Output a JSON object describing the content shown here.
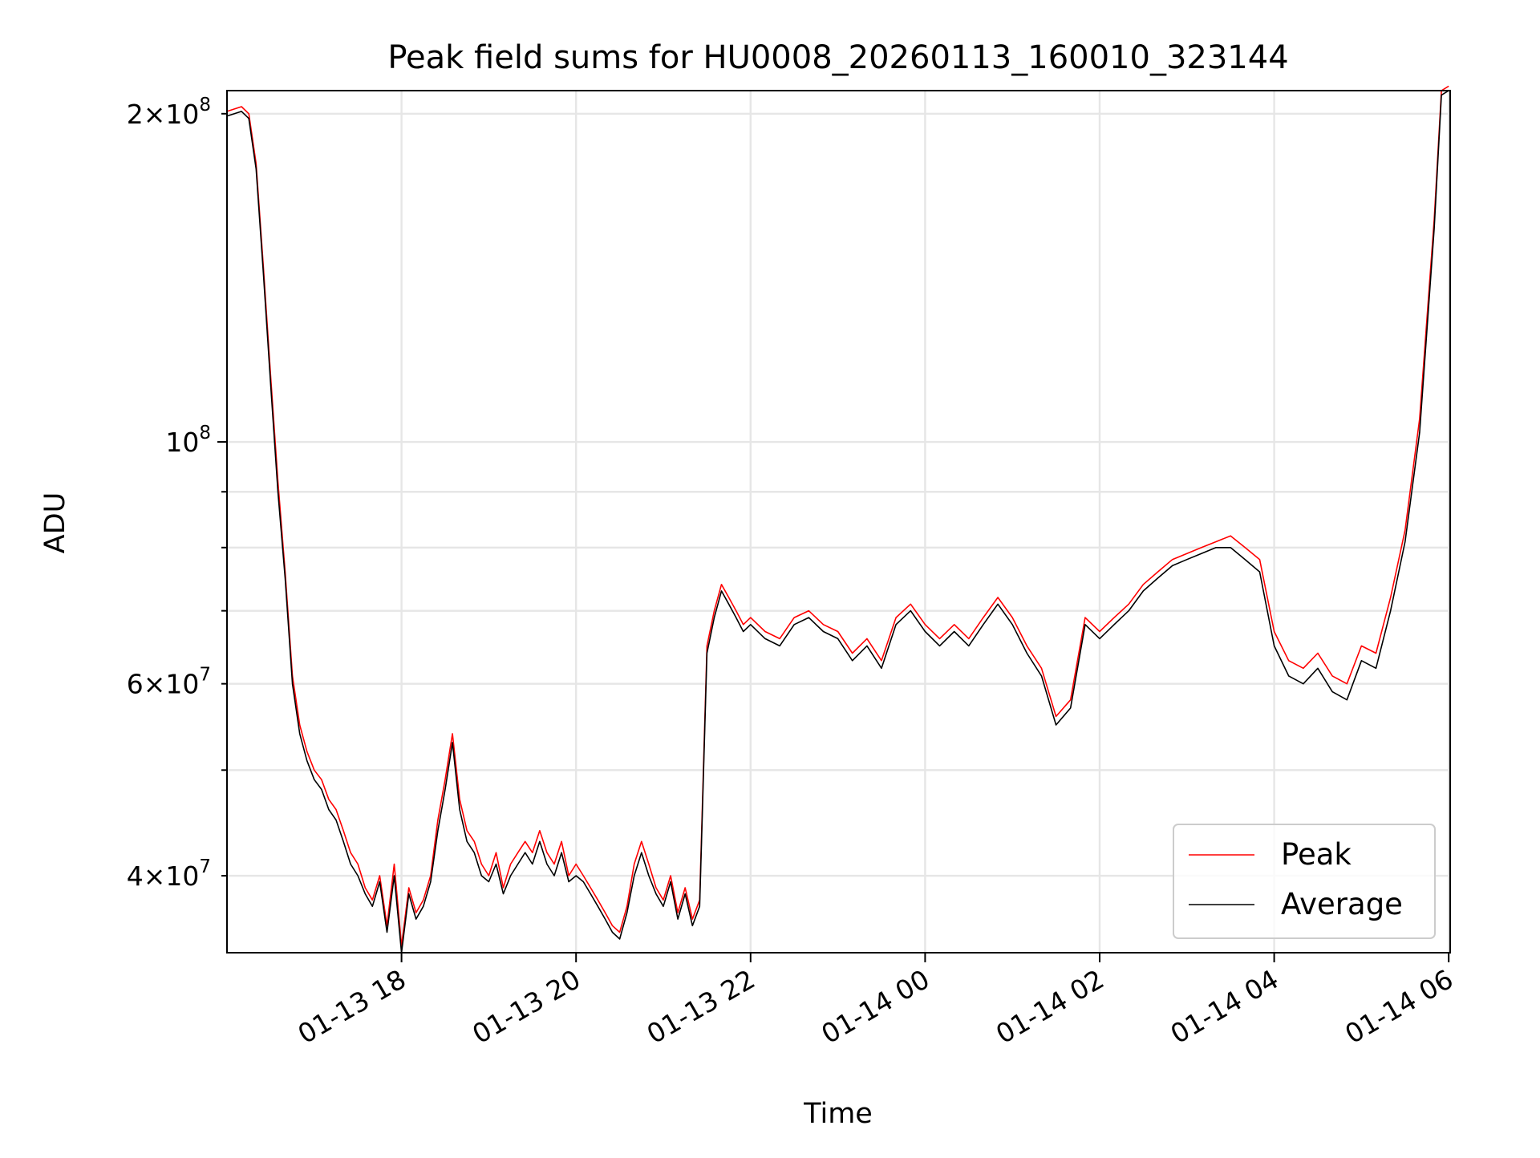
{
  "chart_data": {
    "type": "line",
    "title": "Peak field sums for HU0008_20260113_160010_323144",
    "xlabel": "Time",
    "ylabel": "ADU",
    "yscale": "log",
    "xlim": [
      "2026-01-13 16:00",
      "2026-01-14 06:01"
    ],
    "ylim": [
      34000000.0,
      210000000.0
    ],
    "grid": true,
    "legend_position": "lower-right",
    "x_tick_labels": [
      "01-13 18",
      "01-13 20",
      "01-13 22",
      "01-14 00",
      "01-14 02",
      "01-14 04",
      "01-14 06"
    ],
    "x_tick_times": [
      "2026-01-13 18:00",
      "2026-01-13 20:00",
      "2026-01-13 22:00",
      "2026-01-14 00:00",
      "2026-01-14 02:00",
      "2026-01-14 04:00",
      "2026-01-14 06:00"
    ],
    "y_major_ticks": [
      {
        "value": 100000000,
        "base": "10",
        "exp": "8"
      }
    ],
    "y_minor_ticks": [
      {
        "value": 40000000,
        "mant": "4",
        "exp": "7"
      },
      {
        "value": 60000000,
        "mant": "6",
        "exp": "7"
      },
      {
        "value": 200000000,
        "mant": "2",
        "exp": "8"
      }
    ],
    "y_unlabeled_minor_ticks": [
      30000000,
      50000000,
      70000000,
      80000000,
      90000000
    ],
    "series": [
      {
        "name": "Peak",
        "color": "#ff0000",
        "x": [
          "2026-01-13 16:00",
          "2026-01-13 16:10",
          "2026-01-13 16:15",
          "2026-01-13 16:20",
          "2026-01-13 16:25",
          "2026-01-13 16:30",
          "2026-01-13 16:35",
          "2026-01-13 16:40",
          "2026-01-13 16:45",
          "2026-01-13 16:50",
          "2026-01-13 16:55",
          "2026-01-13 17:00",
          "2026-01-13 17:05",
          "2026-01-13 17:10",
          "2026-01-13 17:15",
          "2026-01-13 17:20",
          "2026-01-13 17:25",
          "2026-01-13 17:30",
          "2026-01-13 17:35",
          "2026-01-13 17:40",
          "2026-01-13 17:45",
          "2026-01-13 17:50",
          "2026-01-13 17:55",
          "2026-01-13 18:00",
          "2026-01-13 18:05",
          "2026-01-13 18:10",
          "2026-01-13 18:15",
          "2026-01-13 18:20",
          "2026-01-13 18:25",
          "2026-01-13 18:30",
          "2026-01-13 18:35",
          "2026-01-13 18:40",
          "2026-01-13 18:45",
          "2026-01-13 18:50",
          "2026-01-13 18:55",
          "2026-01-13 19:00",
          "2026-01-13 19:05",
          "2026-01-13 19:10",
          "2026-01-13 19:15",
          "2026-01-13 19:20",
          "2026-01-13 19:25",
          "2026-01-13 19:30",
          "2026-01-13 19:35",
          "2026-01-13 19:40",
          "2026-01-13 19:45",
          "2026-01-13 19:50",
          "2026-01-13 19:55",
          "2026-01-13 20:00",
          "2026-01-13 20:05",
          "2026-01-13 20:10",
          "2026-01-13 20:15",
          "2026-01-13 20:20",
          "2026-01-13 20:25",
          "2026-01-13 20:30",
          "2026-01-13 20:35",
          "2026-01-13 20:40",
          "2026-01-13 20:45",
          "2026-01-13 20:50",
          "2026-01-13 20:55",
          "2026-01-13 21:00",
          "2026-01-13 21:05",
          "2026-01-13 21:10",
          "2026-01-13 21:15",
          "2026-01-13 21:20",
          "2026-01-13 21:25",
          "2026-01-13 21:30",
          "2026-01-13 21:35",
          "2026-01-13 21:40",
          "2026-01-13 21:45",
          "2026-01-13 21:50",
          "2026-01-13 21:55",
          "2026-01-13 22:00",
          "2026-01-13 22:10",
          "2026-01-13 22:20",
          "2026-01-13 22:30",
          "2026-01-13 22:40",
          "2026-01-13 22:50",
          "2026-01-13 23:00",
          "2026-01-13 23:10",
          "2026-01-13 23:20",
          "2026-01-13 23:30",
          "2026-01-13 23:40",
          "2026-01-13 23:50",
          "2026-01-14 00:00",
          "2026-01-14 00:10",
          "2026-01-14 00:20",
          "2026-01-14 00:30",
          "2026-01-14 00:40",
          "2026-01-14 00:50",
          "2026-01-14 01:00",
          "2026-01-14 01:10",
          "2026-01-14 01:20",
          "2026-01-14 01:30",
          "2026-01-14 01:40",
          "2026-01-14 01:50",
          "2026-01-14 02:00",
          "2026-01-14 02:10",
          "2026-01-14 02:20",
          "2026-01-14 02:30",
          "2026-01-14 02:40",
          "2026-01-14 02:50",
          "2026-01-14 03:00",
          "2026-01-14 03:10",
          "2026-01-14 03:20",
          "2026-01-14 03:30",
          "2026-01-14 03:40",
          "2026-01-14 03:50",
          "2026-01-14 04:00",
          "2026-01-14 04:10",
          "2026-01-14 04:20",
          "2026-01-14 04:30",
          "2026-01-14 04:40",
          "2026-01-14 04:50",
          "2026-01-14 05:00",
          "2026-01-14 05:10",
          "2026-01-14 05:20",
          "2026-01-14 05:30",
          "2026-01-14 05:40",
          "2026-01-14 05:50",
          "2026-01-14 05:55",
          "2026-01-14 06:00"
        ],
        "values": [
          201000000.0,
          203000000.0,
          200000000.0,
          180000000.0,
          145000000.0,
          115000000.0,
          92000000.0,
          76000000.0,
          61000000.0,
          55000000.0,
          52000000.0,
          50000000.0,
          49000000.0,
          47000000.0,
          46000000.0,
          44000000.0,
          42000000.0,
          41000000.0,
          39000000.0,
          38000000.0,
          40000000.0,
          36000000.0,
          41000000.0,
          34500000.0,
          39000000.0,
          37000000.0,
          38000000.0,
          40000000.0,
          45000000.0,
          49000000.0,
          54000000.0,
          47000000.0,
          44000000.0,
          43000000.0,
          41000000.0,
          40000000.0,
          42000000.0,
          39000000.0,
          41000000.0,
          42000000.0,
          43000000.0,
          42000000.0,
          44000000.0,
          42000000.0,
          41000000.0,
          43000000.0,
          40000000.0,
          41000000.0,
          40000000.0,
          39000000.0,
          38000000.0,
          37000000.0,
          36000000.0,
          35500000.0,
          37500000.0,
          41000000.0,
          43000000.0,
          41000000.0,
          39000000.0,
          38000000.0,
          40000000.0,
          37000000.0,
          39000000.0,
          36500000.0,
          38000000.0,
          65000000.0,
          70000000.0,
          74000000.0,
          72000000.0,
          70000000.0,
          68000000.0,
          69000000.0,
          67000000.0,
          66000000.0,
          69000000.0,
          70000000.0,
          68000000.0,
          67000000.0,
          64000000.0,
          66000000.0,
          63000000.0,
          69000000.0,
          71000000.0,
          68000000.0,
          66000000.0,
          68000000.0,
          66000000.0,
          69000000.0,
          72000000.0,
          69000000.0,
          65000000.0,
          62000000.0,
          56000000.0,
          58000000.0,
          69000000.0,
          67000000.0,
          69000000.0,
          71000000.0,
          74000000.0,
          76000000.0,
          78000000.0,
          79000000.0,
          80000000.0,
          81000000.0,
          82000000.0,
          80000000.0,
          78000000.0,
          67000000.0,
          63000000.0,
          62000000.0,
          64000000.0,
          61000000.0,
          60000000.0,
          65000000.0,
          64000000.0,
          72000000.0,
          83000000.0,
          105000000.0,
          160000000.0,
          210000000.0,
          212000000.0
        ]
      },
      {
        "name": "Average",
        "color": "#000000",
        "x": [
          "2026-01-13 16:00",
          "2026-01-13 16:10",
          "2026-01-13 16:15",
          "2026-01-13 16:20",
          "2026-01-13 16:25",
          "2026-01-13 16:30",
          "2026-01-13 16:35",
          "2026-01-13 16:40",
          "2026-01-13 16:45",
          "2026-01-13 16:50",
          "2026-01-13 16:55",
          "2026-01-13 17:00",
          "2026-01-13 17:05",
          "2026-01-13 17:10",
          "2026-01-13 17:15",
          "2026-01-13 17:20",
          "2026-01-13 17:25",
          "2026-01-13 17:30",
          "2026-01-13 17:35",
          "2026-01-13 17:40",
          "2026-01-13 17:45",
          "2026-01-13 17:50",
          "2026-01-13 17:55",
          "2026-01-13 18:00",
          "2026-01-13 18:05",
          "2026-01-13 18:10",
          "2026-01-13 18:15",
          "2026-01-13 18:20",
          "2026-01-13 18:25",
          "2026-01-13 18:30",
          "2026-01-13 18:35",
          "2026-01-13 18:40",
          "2026-01-13 18:45",
          "2026-01-13 18:50",
          "2026-01-13 18:55",
          "2026-01-13 19:00",
          "2026-01-13 19:05",
          "2026-01-13 19:10",
          "2026-01-13 19:15",
          "2026-01-13 19:20",
          "2026-01-13 19:25",
          "2026-01-13 19:30",
          "2026-01-13 19:35",
          "2026-01-13 19:40",
          "2026-01-13 19:45",
          "2026-01-13 19:50",
          "2026-01-13 19:55",
          "2026-01-13 20:00",
          "2026-01-13 20:05",
          "2026-01-13 20:10",
          "2026-01-13 20:15",
          "2026-01-13 20:20",
          "2026-01-13 20:25",
          "2026-01-13 20:30",
          "2026-01-13 20:35",
          "2026-01-13 20:40",
          "2026-01-13 20:45",
          "2026-01-13 20:50",
          "2026-01-13 20:55",
          "2026-01-13 21:00",
          "2026-01-13 21:05",
          "2026-01-13 21:10",
          "2026-01-13 21:15",
          "2026-01-13 21:20",
          "2026-01-13 21:25",
          "2026-01-13 21:30",
          "2026-01-13 21:35",
          "2026-01-13 21:40",
          "2026-01-13 21:45",
          "2026-01-13 21:50",
          "2026-01-13 21:55",
          "2026-01-13 22:00",
          "2026-01-13 22:10",
          "2026-01-13 22:20",
          "2026-01-13 22:30",
          "2026-01-13 22:40",
          "2026-01-13 22:50",
          "2026-01-13 23:00",
          "2026-01-13 23:10",
          "2026-01-13 23:20",
          "2026-01-13 23:30",
          "2026-01-13 23:40",
          "2026-01-13 23:50",
          "2026-01-14 00:00",
          "2026-01-14 00:10",
          "2026-01-14 00:20",
          "2026-01-14 00:30",
          "2026-01-14 00:40",
          "2026-01-14 00:50",
          "2026-01-14 01:00",
          "2026-01-14 01:10",
          "2026-01-14 01:20",
          "2026-01-14 01:30",
          "2026-01-14 01:40",
          "2026-01-14 01:50",
          "2026-01-14 02:00",
          "2026-01-14 02:10",
          "2026-01-14 02:20",
          "2026-01-14 02:30",
          "2026-01-14 02:40",
          "2026-01-14 02:50",
          "2026-01-14 03:00",
          "2026-01-14 03:10",
          "2026-01-14 03:20",
          "2026-01-14 03:30",
          "2026-01-14 03:40",
          "2026-01-14 03:50",
          "2026-01-14 04:00",
          "2026-01-14 04:10",
          "2026-01-14 04:20",
          "2026-01-14 04:30",
          "2026-01-14 04:40",
          "2026-01-14 04:50",
          "2026-01-14 05:00",
          "2026-01-14 05:10",
          "2026-01-14 05:20",
          "2026-01-14 05:30",
          "2026-01-14 05:40",
          "2026-01-14 05:50",
          "2026-01-14 05:55",
          "2026-01-14 06:00"
        ],
        "values": [
          199000000.0,
          201000000.0,
          198000000.0,
          178000000.0,
          143000000.0,
          113000000.0,
          90000000.0,
          75000000.0,
          60000000.0,
          54000000.0,
          51000000.0,
          49000000.0,
          48000000.0,
          46000000.0,
          45000000.0,
          43000000.0,
          41000000.0,
          40000000.0,
          38500000.0,
          37500000.0,
          39500000.0,
          35500000.0,
          40000000.0,
          34000000.0,
          38500000.0,
          36500000.0,
          37500000.0,
          39500000.0,
          44000000.0,
          48000000.0,
          53000000.0,
          46000000.0,
          43000000.0,
          42000000.0,
          40000000.0,
          39500000.0,
          41000000.0,
          38500000.0,
          40000000.0,
          41000000.0,
          42000000.0,
          41000000.0,
          43000000.0,
          41000000.0,
          40000000.0,
          42000000.0,
          39500000.0,
          40000000.0,
          39500000.0,
          38500000.0,
          37500000.0,
          36500000.0,
          35500000.0,
          35000000.0,
          37000000.0,
          40000000.0,
          42000000.0,
          40000000.0,
          38500000.0,
          37500000.0,
          39500000.0,
          36500000.0,
          38500000.0,
          36000000.0,
          37500000.0,
          64000000.0,
          69000000.0,
          73000000.0,
          71000000.0,
          69000000.0,
          67000000.0,
          68000000.0,
          66000000.0,
          65000000.0,
          68000000.0,
          69000000.0,
          67000000.0,
          66000000.0,
          63000000.0,
          65000000.0,
          62000000.0,
          68000000.0,
          70000000.0,
          67000000.0,
          65000000.0,
          67000000.0,
          65000000.0,
          68000000.0,
          71000000.0,
          68000000.0,
          64000000.0,
          61000000.0,
          55000000.0,
          57000000.0,
          68000000.0,
          66000000.0,
          68000000.0,
          70000000.0,
          73000000.0,
          75000000.0,
          77000000.0,
          78000000.0,
          79000000.0,
          80000000.0,
          80000000.0,
          78000000.0,
          76000000.0,
          65000000.0,
          61000000.0,
          60000000.0,
          62000000.0,
          59000000.0,
          58000000.0,
          63000000.0,
          62000000.0,
          70000000.0,
          81000000.0,
          102000000.0,
          157000000.0,
          208000000.0,
          210000000.0
        ]
      }
    ],
    "legend": [
      {
        "label": "Peak",
        "color": "#ff0000"
      },
      {
        "label": "Average",
        "color": "#000000"
      }
    ]
  }
}
